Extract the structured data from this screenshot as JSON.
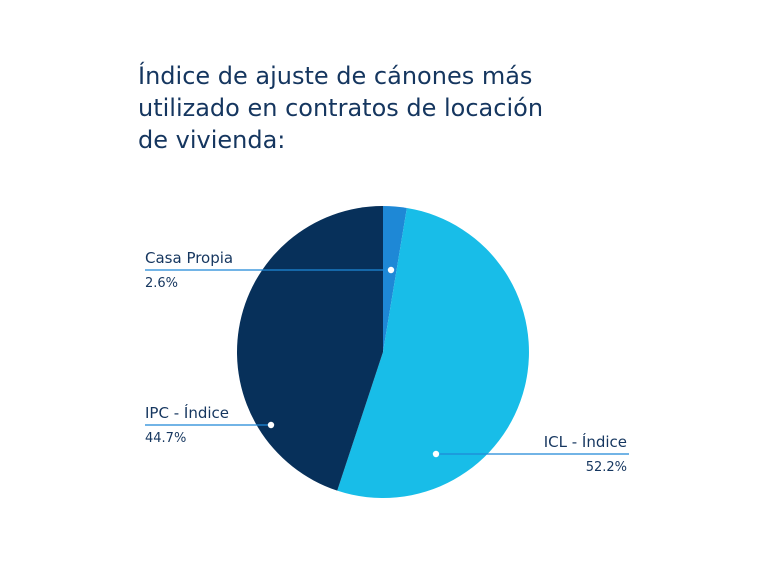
{
  "title_lines": [
    "Índice de ajuste de cánones más",
    "utilizado en contratos de locación",
    "de vivienda:"
  ],
  "chart_data": {
    "type": "pie",
    "title": "Índice de ajuste de cánones más utilizado en contratos de locación de vivienda:",
    "slices": [
      {
        "label": "Casa Propia",
        "value": 2.6,
        "display": "2.6%",
        "color": "#1e88d6"
      },
      {
        "label": "ICL - Índice",
        "value": 52.2,
        "display": "52.2%",
        "color": "#18bde8"
      },
      {
        "label": "IPC - Índice",
        "value": 44.7,
        "display": "44.7%",
        "color": "#07305a"
      }
    ],
    "start_angle": "12 o'clock",
    "direction": "clockwise",
    "legend": "inline callout labels"
  }
}
